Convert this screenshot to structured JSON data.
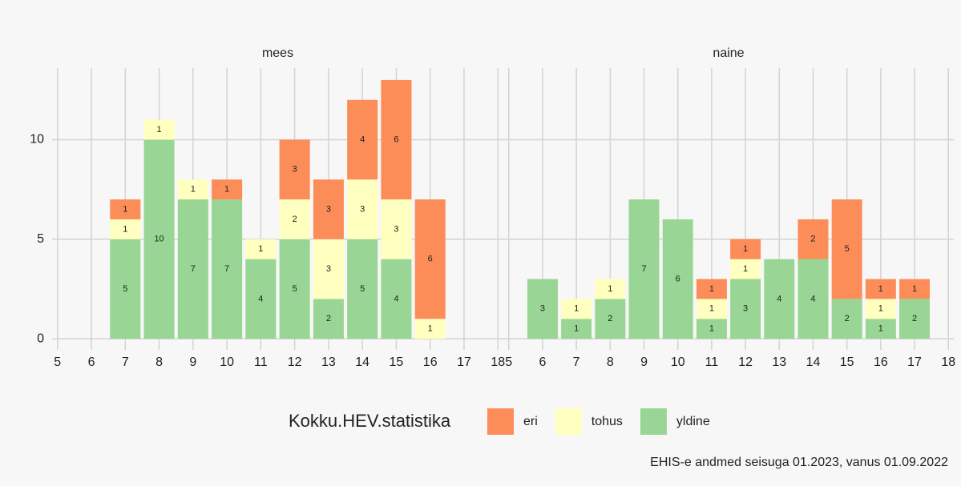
{
  "chart_data": [
    {
      "type": "bar",
      "title": "mees",
      "x": [
        7,
        8,
        9,
        10,
        11,
        12,
        13,
        14,
        15,
        16
      ],
      "series": [
        {
          "name": "eri",
          "color": "#fc8d59",
          "values": [
            1,
            null,
            null,
            1,
            null,
            3,
            3,
            4,
            6,
            6
          ]
        },
        {
          "name": "tohus",
          "color": "#ffffbf",
          "values": [
            1,
            1,
            1,
            null,
            1,
            2,
            3,
            3,
            3,
            1
          ]
        },
        {
          "name": "yldine",
          "color": "#99d594",
          "values": [
            5,
            10,
            7,
            7,
            4,
            5,
            2,
            5,
            4,
            null
          ]
        }
      ],
      "xlim": [
        4.84,
        18.16
      ],
      "xticks": [
        5,
        6,
        7,
        8,
        9,
        10,
        11,
        12,
        13,
        14,
        15,
        16,
        17,
        18
      ],
      "ylim": [
        -0.56,
        13.6
      ],
      "yticks": [
        0,
        5,
        10
      ],
      "grid": true
    },
    {
      "type": "bar",
      "title": "naine",
      "x": [
        6,
        7,
        8,
        9,
        10,
        11,
        12,
        13,
        14,
        15,
        16,
        17
      ],
      "series": [
        {
          "name": "eri",
          "color": "#fc8d59",
          "values": [
            null,
            null,
            null,
            null,
            null,
            1,
            1,
            null,
            2,
            5,
            1,
            1
          ]
        },
        {
          "name": "tohus",
          "color": "#ffffbf",
          "values": [
            null,
            1,
            1,
            null,
            null,
            1,
            1,
            null,
            null,
            null,
            1,
            null
          ]
        },
        {
          "name": "yldine",
          "color": "#99d594",
          "values": [
            3,
            1,
            2,
            7,
            6,
            1,
            3,
            4,
            4,
            2,
            1,
            2
          ]
        }
      ],
      "xlim": [
        4.84,
        18.16
      ],
      "xticks": [
        5,
        6,
        7,
        8,
        9,
        10,
        11,
        12,
        13,
        14,
        15,
        16,
        17,
        18
      ],
      "ylim": [
        -0.56,
        13.6
      ],
      "yticks": [
        0,
        5,
        10
      ],
      "grid": true
    }
  ],
  "legend_title": "Kokku.HEV.statistika",
  "caption": "EHIS-e andmed seisuga 01.2023, vanus 01.09.2022"
}
